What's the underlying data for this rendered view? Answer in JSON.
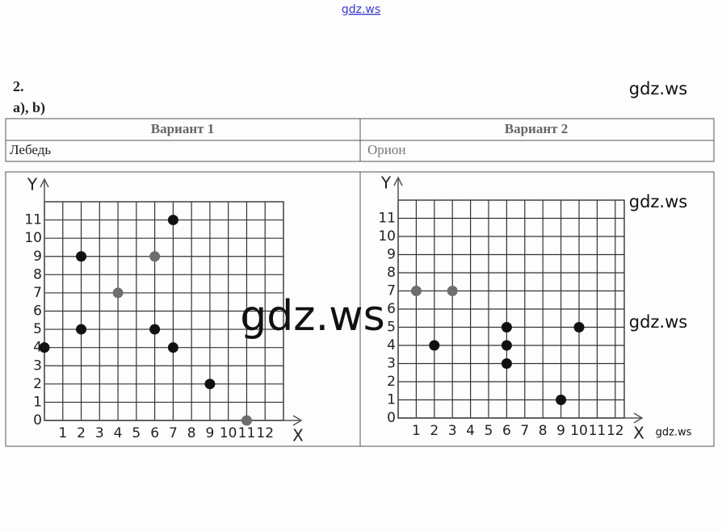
{
  "header": {
    "site": "gdz.ws",
    "number": "2.",
    "parts": "а), b)"
  },
  "watermarks": [
    "gdz.ws",
    "gdz.ws",
    "gdz.ws",
    "gdz.ws",
    "gdz.ws"
  ],
  "table": {
    "headers": [
      "Вариант 1",
      "Вариант 2"
    ],
    "rows": [
      [
        "Лебедь",
        "Орион"
      ]
    ]
  },
  "chart_data": [
    {
      "type": "scatter",
      "xlabel": "X",
      "ylabel": "Y",
      "xlim": [
        0,
        13
      ],
      "ylim": [
        0,
        12
      ],
      "xticks": [
        1,
        2,
        3,
        4,
        5,
        6,
        7,
        8,
        9,
        10,
        11,
        12
      ],
      "yticks": [
        0,
        1,
        2,
        3,
        4,
        5,
        6,
        7,
        8,
        9,
        10,
        11
      ],
      "grid": true,
      "series": [
        {
          "color": "#111111",
          "x": [
            0,
            2,
            2,
            6,
            7,
            7,
            9
          ],
          "values": [
            4,
            5,
            9,
            5,
            11,
            4,
            2
          ]
        },
        {
          "color": "#6e6e6e",
          "x": [
            4,
            6,
            11
          ],
          "values": [
            7,
            9,
            0
          ]
        }
      ]
    },
    {
      "type": "scatter",
      "xlabel": "X",
      "ylabel": "Y",
      "xlim": [
        0,
        12.5
      ],
      "ylim": [
        0,
        12
      ],
      "xticks": [
        1,
        2,
        3,
        4,
        5,
        6,
        7,
        8,
        9,
        10,
        11,
        12
      ],
      "yticks": [
        0,
        1,
        2,
        3,
        4,
        5,
        6,
        7,
        8,
        9,
        10,
        11
      ],
      "grid": true,
      "series": [
        {
          "color": "#111111",
          "x": [
            2,
            6,
            6,
            6,
            9,
            10
          ],
          "values": [
            4,
            5,
            4,
            3,
            1,
            5
          ]
        },
        {
          "color": "#6e6e6e",
          "x": [
            1,
            3
          ],
          "values": [
            7,
            7
          ]
        }
      ]
    }
  ]
}
